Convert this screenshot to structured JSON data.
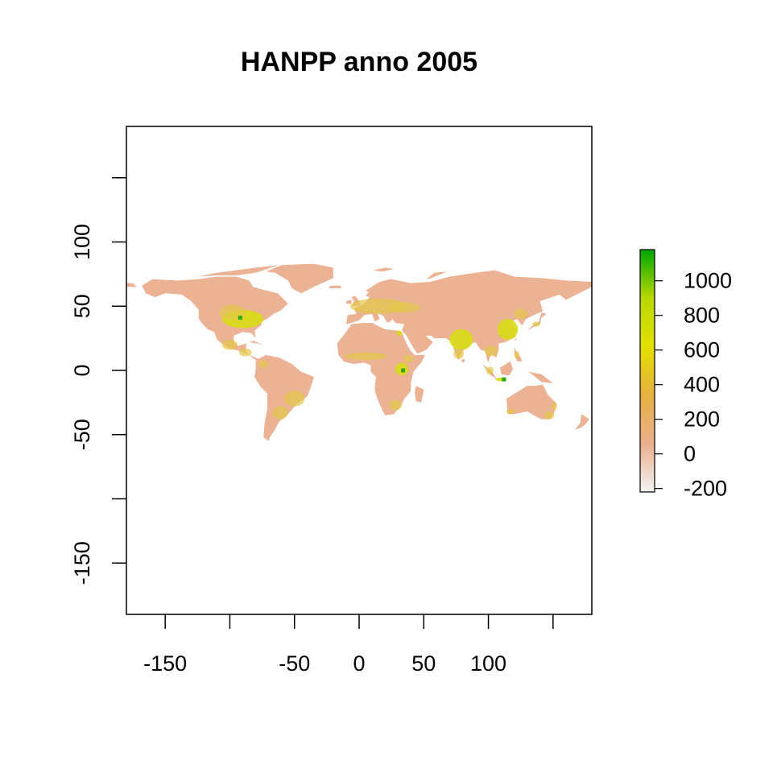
{
  "chart_data": {
    "type": "heatmap",
    "title": "HANPP anno 2005",
    "xlabel": "",
    "ylabel": "",
    "xlim": [
      -180,
      180
    ],
    "ylim": [
      -190,
      190
    ],
    "x_ticks": [
      -150,
      -100,
      -50,
      0,
      50,
      100,
      150
    ],
    "x_tick_labels": [
      "-150",
      "",
      "-50",
      "0",
      "50",
      "100",
      ""
    ],
    "y_ticks": [
      -150,
      -100,
      -50,
      0,
      50,
      100,
      150
    ],
    "y_tick_labels": [
      "-150",
      "",
      "-50",
      "0",
      "50",
      "100",
      ""
    ],
    "legend": {
      "placement": "right",
      "range": [
        -220,
        1180
      ],
      "ticks": [
        1000,
        800,
        600,
        400,
        200,
        0,
        -200
      ],
      "tick_labels": [
        "1000",
        "800",
        "600",
        "400",
        "200",
        "0",
        "-200"
      ],
      "colors": [
        "#f2f2f2",
        "#ebaf8e",
        "#e6b040",
        "#e3e000",
        "#b8d800",
        "#00a600"
      ]
    },
    "land_color": "#ebb294",
    "hotspot_low_color": "#e3c84a",
    "hotspot_high_color": "#d8de10",
    "peak_color": "#32a812"
  }
}
